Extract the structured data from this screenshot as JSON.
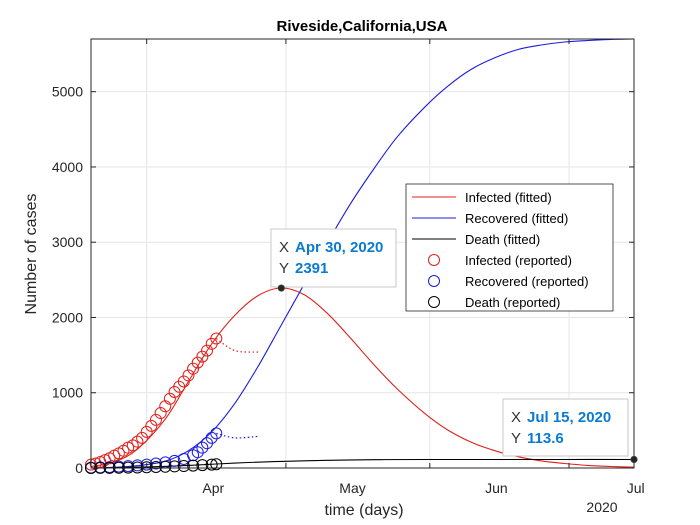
{
  "chart_data": {
    "type": "line",
    "title": "Riveside,California,USA",
    "xlabel": "time (days)",
    "ylabel": "Number of cases",
    "x_tick_labels": [
      "Apr",
      "May",
      "Jun",
      "Jul"
    ],
    "year_label": "2020",
    "y_ticks": [
      0,
      1000,
      2000,
      3000,
      4000,
      5000
    ],
    "y_tick_labels": [
      "0",
      "1000",
      "2000",
      "3000",
      "4000",
      "5000"
    ],
    "xlim": [
      "2020-03-20",
      "2020-07-15"
    ],
    "ylim": [
      0,
      5700
    ],
    "grid": true,
    "legend_position": "center-right",
    "series": [
      {
        "name": "Infected (fitted)",
        "kind": "line",
        "color": "#e0201b",
        "x": [
          "2020-03-20",
          "2020-03-25",
          "2020-03-30",
          "2020-04-05",
          "2020-04-10",
          "2020-04-15",
          "2020-04-20",
          "2020-04-25",
          "2020-04-30",
          "2020-05-05",
          "2020-05-10",
          "2020-05-15",
          "2020-05-20",
          "2020-05-25",
          "2020-05-31",
          "2020-06-05",
          "2020-06-10",
          "2020-06-15",
          "2020-06-20",
          "2020-06-25",
          "2020-06-30",
          "2020-07-05",
          "2020-07-10",
          "2020-07-15"
        ],
        "y": [
          20,
          80,
          250,
          650,
          1150,
          1650,
          2030,
          2290,
          2391,
          2300,
          2050,
          1720,
          1370,
          1050,
          720,
          500,
          340,
          230,
          150,
          95,
          60,
          35,
          20,
          10
        ]
      },
      {
        "name": "Recovered (fitted)",
        "kind": "line",
        "color": "#1c1ce0",
        "x": [
          "2020-03-20",
          "2020-03-25",
          "2020-03-30",
          "2020-04-05",
          "2020-04-10",
          "2020-04-15",
          "2020-04-20",
          "2020-04-25",
          "2020-04-30",
          "2020-05-05",
          "2020-05-10",
          "2020-05-15",
          "2020-05-20",
          "2020-05-25",
          "2020-05-31",
          "2020-06-05",
          "2020-06-10",
          "2020-06-15",
          "2020-06-20",
          "2020-06-25",
          "2020-06-30",
          "2020-07-05",
          "2020-07-10",
          "2020-07-15"
        ],
        "y": [
          0,
          10,
          30,
          90,
          230,
          480,
          860,
          1350,
          1900,
          2450,
          3000,
          3520,
          3980,
          4400,
          4800,
          5080,
          5300,
          5450,
          5560,
          5620,
          5660,
          5680,
          5695,
          5700
        ]
      },
      {
        "name": "Death (fitted)",
        "kind": "line",
        "color": "#000000",
        "x": [
          "2020-03-20",
          "2020-03-30",
          "2020-04-10",
          "2020-04-20",
          "2020-04-30",
          "2020-05-10",
          "2020-05-20",
          "2020-05-31",
          "2020-06-15",
          "2020-06-30",
          "2020-07-15"
        ],
        "y": [
          0,
          10,
          35,
          65,
          88,
          102,
          110,
          113,
          113.5,
          113.6,
          113.6
        ]
      },
      {
        "name": "Infected (reported)",
        "kind": "markers",
        "color": "#e0201b",
        "x": [
          "2020-03-20",
          "2020-03-21",
          "2020-03-22",
          "2020-03-23",
          "2020-03-24",
          "2020-03-25",
          "2020-03-26",
          "2020-03-27",
          "2020-03-28",
          "2020-03-29",
          "2020-03-30",
          "2020-03-31",
          "2020-04-01",
          "2020-04-02",
          "2020-04-03",
          "2020-04-04",
          "2020-04-05",
          "2020-04-06",
          "2020-04-07",
          "2020-04-08",
          "2020-04-09",
          "2020-04-10",
          "2020-04-11",
          "2020-04-12",
          "2020-04-13",
          "2020-04-14",
          "2020-04-15",
          "2020-04-16"
        ],
        "y": [
          45,
          60,
          80,
          105,
          130,
          165,
          195,
          230,
          270,
          300,
          350,
          400,
          480,
          560,
          640,
          730,
          820,
          920,
          1010,
          1080,
          1150,
          1230,
          1320,
          1400,
          1480,
          1560,
          1650,
          1720
        ]
      },
      {
        "name": "Recovered (reported)",
        "kind": "markers",
        "color": "#1c1ce0",
        "x": [
          "2020-03-20",
          "2020-03-22",
          "2020-03-24",
          "2020-03-26",
          "2020-03-28",
          "2020-03-30",
          "2020-04-01",
          "2020-04-03",
          "2020-04-05",
          "2020-04-07",
          "2020-04-09",
          "2020-04-11",
          "2020-04-12",
          "2020-04-13",
          "2020-04-14",
          "2020-04-15",
          "2020-04-16"
        ],
        "y": [
          5,
          8,
          12,
          18,
          25,
          35,
          45,
          60,
          75,
          95,
          120,
          170,
          210,
          270,
          330,
          400,
          460
        ]
      },
      {
        "name": "Death  (reported)",
        "kind": "markers",
        "color": "#000000",
        "x": [
          "2020-03-20",
          "2020-03-22",
          "2020-03-24",
          "2020-03-26",
          "2020-03-28",
          "2020-03-30",
          "2020-04-01",
          "2020-04-03",
          "2020-04-05",
          "2020-04-07",
          "2020-04-09",
          "2020-04-11",
          "2020-04-13",
          "2020-04-15",
          "2020-04-16"
        ],
        "y": [
          0,
          1,
          2,
          3,
          5,
          7,
          10,
          13,
          17,
          21,
          26,
          32,
          38,
          45,
          50
        ]
      }
    ],
    "projection_lines": [
      {
        "color": "#e0201b",
        "x": [
          "2020-04-16",
          "2020-04-20",
          "2020-04-25"
        ],
        "y": [
          1720,
          1560,
          1540
        ]
      },
      {
        "color": "#1c1ce0",
        "x": [
          "2020-04-16",
          "2020-04-20",
          "2020-04-25"
        ],
        "y": [
          460,
          400,
          420
        ]
      }
    ],
    "datatips": [
      {
        "x_label": "X",
        "x_value": "Apr 30, 2020",
        "y_label": "Y",
        "y_value": "2391",
        "x": "2020-04-30",
        "y": 2391
      },
      {
        "x_label": "X",
        "x_value": "Jul 15, 2020",
        "y_label": "Y",
        "y_value": "113.6",
        "x": "2020-07-15",
        "y": 113.6
      }
    ]
  }
}
